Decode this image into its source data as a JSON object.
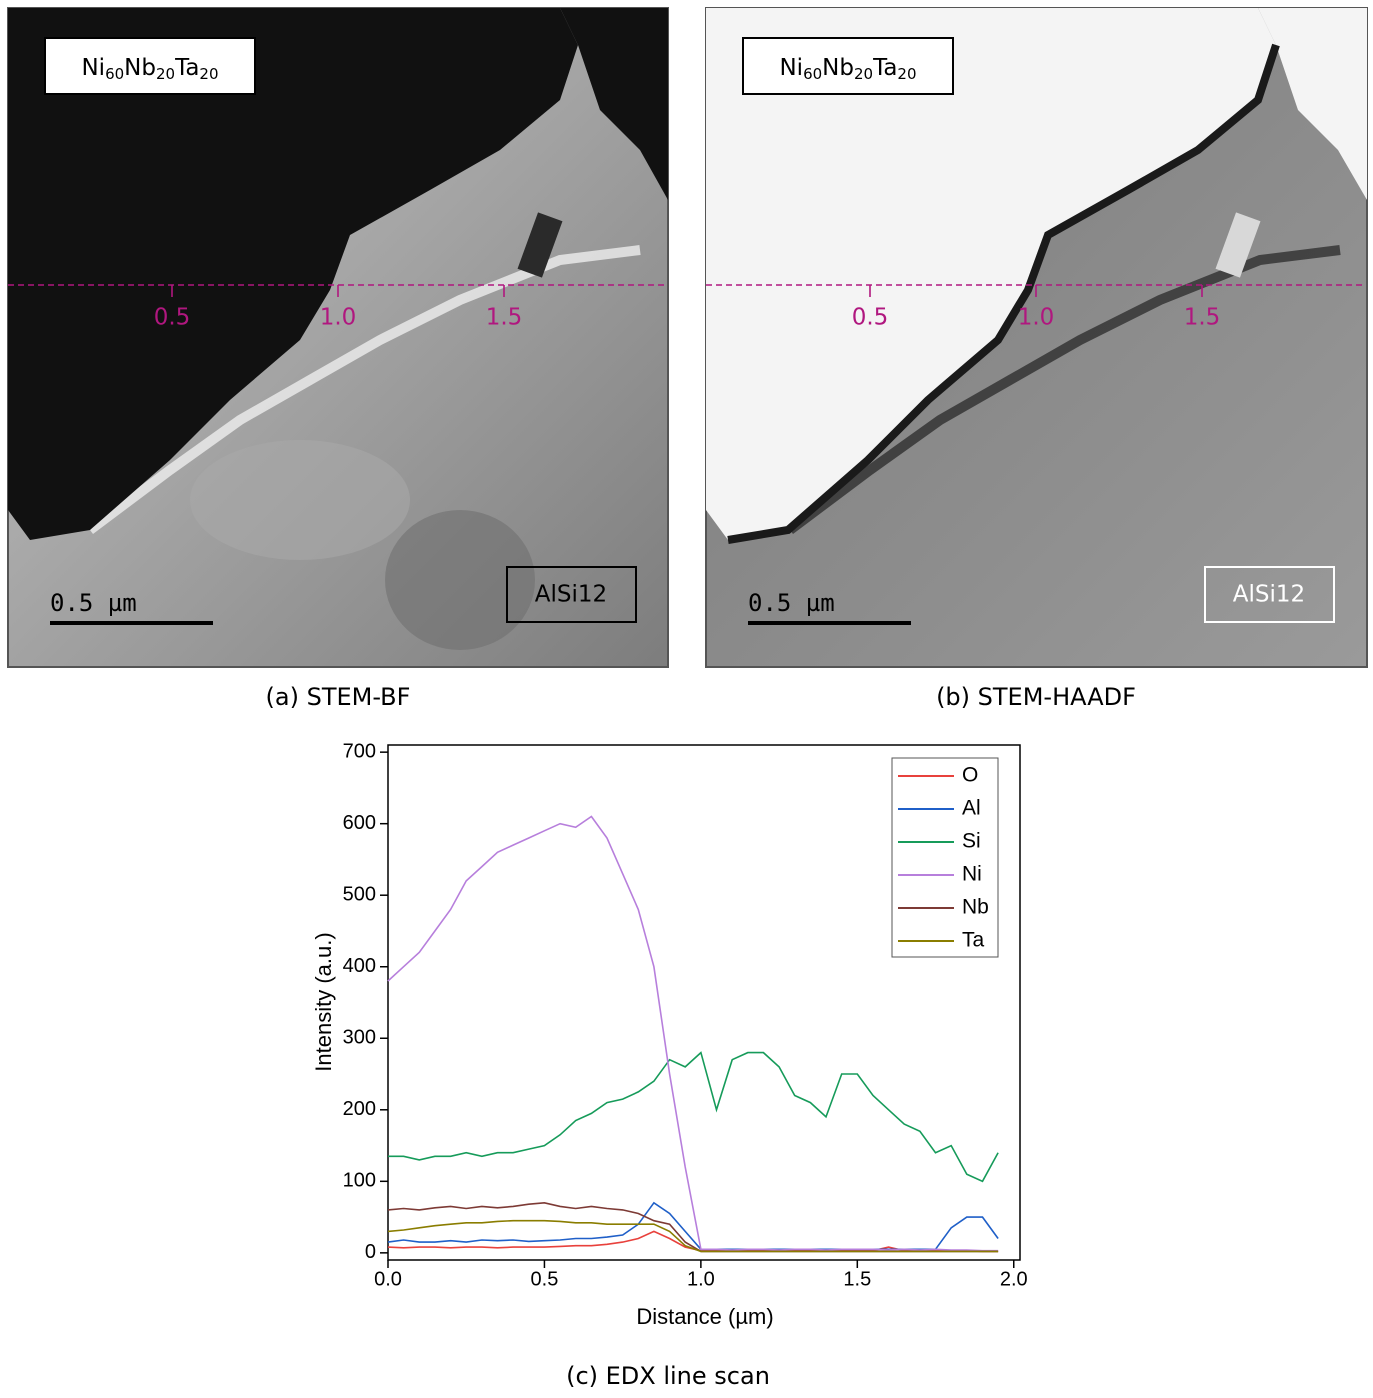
{
  "panels": [
    {
      "caption": "(a) STEM-BF",
      "composition": [
        {
          "symbol": "Ni",
          "sub": "60"
        },
        {
          "symbol": "Nb",
          "sub": "20"
        },
        {
          "symbol": "Ta",
          "sub": "20"
        }
      ],
      "substrate": "AlSi12",
      "scale_bar": "0.5 µm",
      "scan_ticks": [
        0.5,
        {
          "value": 1,
          "label": "1.0"
        },
        1.5
      ]
    },
    {
      "caption": "(b) STEM-HAADF",
      "composition": [
        {
          "symbol": "Ni",
          "sub": "60"
        },
        {
          "symbol": "Nb",
          "sub": "20"
        },
        {
          "symbol": "Ta",
          "sub": "20"
        }
      ],
      "substrate": "AlSi12",
      "scale_bar": "0.5 µm",
      "scan_ticks": [
        0.5,
        {
          "value": 1,
          "label": "1.0"
        },
        1.5
      ]
    }
  ],
  "chart_data": {
    "type": "line",
    "caption": "(c) EDX line scan",
    "x_label": "Distance (µm)",
    "y_label": "Intensity (a.u.)",
    "x": [
      0,
      0.05,
      0.1,
      0.15,
      0.2,
      0.25,
      0.3,
      0.35,
      0.4,
      0.45,
      0.5,
      0.55,
      0.6,
      0.65,
      0.7,
      0.75,
      0.8,
      0.85,
      0.9,
      0.95,
      1,
      1.05,
      1.1,
      1.15,
      1.2,
      1.25,
      1.3,
      1.35,
      1.4,
      1.45,
      1.5,
      1.55,
      1.6,
      1.65,
      1.7,
      1.75,
      1.8,
      1.85,
      1.9,
      1.95
    ],
    "series": [
      {
        "name": "O",
        "color": "#e8413c",
        "values": [
          8,
          7,
          8,
          8,
          7,
          8,
          8,
          7,
          8,
          8,
          8,
          9,
          10,
          10,
          12,
          15,
          20,
          30,
          20,
          8,
          3,
          3,
          3,
          3,
          3,
          3,
          3,
          3,
          3,
          3,
          3,
          3,
          8,
          3,
          3,
          3,
          3,
          3,
          2,
          2
        ]
      },
      {
        "name": "Al",
        "color": "#1f5fc8",
        "values": [
          15,
          18,
          15,
          15,
          17,
          15,
          18,
          17,
          18,
          16,
          17,
          18,
          20,
          20,
          22,
          25,
          40,
          70,
          55,
          30,
          5,
          5,
          5,
          5,
          5,
          5,
          5,
          5,
          5,
          5,
          5,
          5,
          5,
          5,
          5,
          5,
          35,
          50,
          50,
          20
        ]
      },
      {
        "name": "Si",
        "color": "#169b5a",
        "values": [
          135,
          135,
          130,
          135,
          135,
          140,
          135,
          140,
          140,
          145,
          150,
          165,
          185,
          195,
          210,
          215,
          225,
          240,
          270,
          260,
          280,
          200,
          270,
          280,
          280,
          260,
          220,
          210,
          190,
          250,
          250,
          220,
          200,
          180,
          170,
          140,
          150,
          110,
          100,
          140
        ]
      },
      {
        "name": "Ni",
        "color": "#b77fdc",
        "values": [
          380,
          400,
          420,
          450,
          480,
          520,
          540,
          560,
          570,
          580,
          590,
          600,
          595,
          610,
          580,
          530,
          480,
          400,
          250,
          120,
          5,
          5,
          4,
          5,
          5,
          4,
          5,
          5,
          4,
          5,
          5,
          5,
          4,
          5,
          4,
          5,
          4,
          4,
          3,
          3
        ]
      },
      {
        "name": "Nb",
        "color": "#7d3a35",
        "values": [
          60,
          62,
          60,
          63,
          65,
          62,
          65,
          63,
          65,
          68,
          70,
          65,
          62,
          65,
          62,
          60,
          55,
          45,
          40,
          15,
          2,
          2,
          2,
          2,
          2,
          2,
          2,
          2,
          2,
          2,
          2,
          2,
          2,
          2,
          2,
          2,
          2,
          2,
          2,
          2
        ]
      },
      {
        "name": "Ta",
        "color": "#8a7d00",
        "values": [
          30,
          32,
          35,
          38,
          40,
          42,
          42,
          44,
          45,
          45,
          45,
          44,
          42,
          42,
          40,
          40,
          40,
          40,
          30,
          10,
          2,
          2,
          2,
          2,
          2,
          2,
          2,
          2,
          2,
          2,
          2,
          2,
          2,
          2,
          2,
          2,
          2,
          2,
          2,
          2
        ]
      }
    ],
    "xlim": [
      0,
      2.02
    ],
    "ylim": [
      -10,
      710
    ],
    "xticks": [
      {
        "value": 0,
        "label": "0.0"
      },
      0.5,
      {
        "value": 1,
        "label": "1.0"
      },
      1.5,
      {
        "value": 2,
        "label": "2.0"
      }
    ],
    "yticks": [
      0,
      100,
      200,
      300,
      400,
      500,
      600,
      700
    ],
    "legend": "top-right",
    "grid": false
  }
}
